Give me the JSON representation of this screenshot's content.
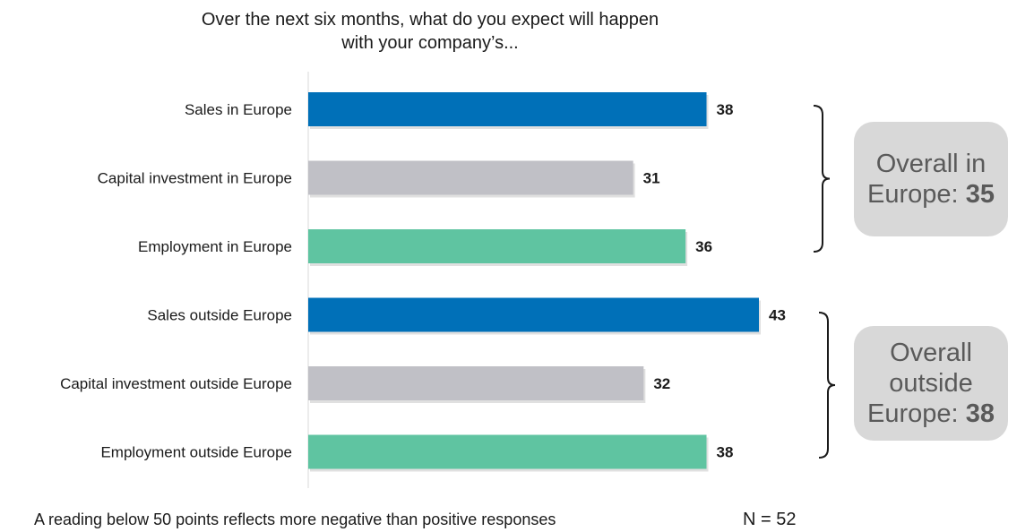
{
  "chart_data": {
    "type": "bar",
    "orientation": "horizontal",
    "title_lines": [
      "Over the next six months, what do you expect will happen",
      "with your company’s..."
    ],
    "categories": [
      "Sales in Europe",
      "Capital investment in Europe",
      "Employment in Europe",
      "Sales outside Europe",
      "Capital investment outside Europe",
      "Employment outside Europe"
    ],
    "values": [
      38,
      31,
      36,
      43,
      32,
      38
    ],
    "bar_colors": [
      "#0070b8",
      "#c0c0c6",
      "#5fc4a1",
      "#0070b8",
      "#c0c0c6",
      "#5fc4a1"
    ],
    "xlim": [
      0,
      50
    ],
    "grid": false,
    "groups": [
      {
        "label_lines": [
          "Overall in",
          "Europe:"
        ],
        "value": "35",
        "categories": [
          0,
          1,
          2
        ]
      },
      {
        "label_lines": [
          "Overall",
          "outside",
          "Europe:"
        ],
        "value": "38",
        "categories": [
          3,
          4,
          5
        ]
      }
    ],
    "footnote": "A reading below 50 points reflects more negative than positive responses",
    "sample_size": "N = 52"
  }
}
